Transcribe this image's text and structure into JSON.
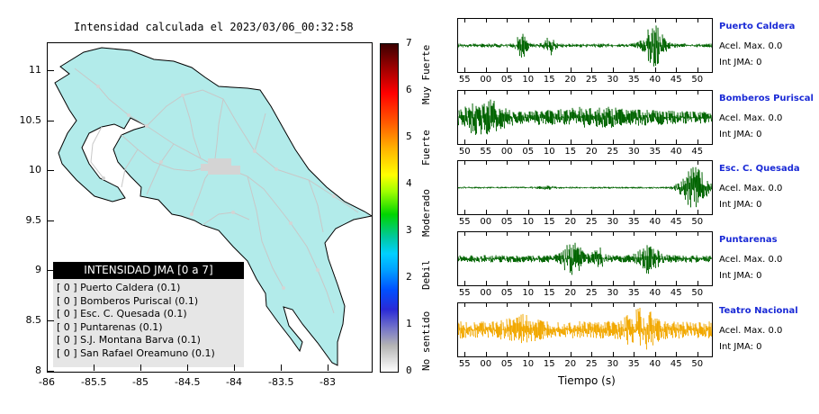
{
  "map": {
    "title": "Intensidad calculada el 2023/03/06_00:32:58",
    "lon_ticks": [
      "-86",
      "-85.5",
      "-85",
      "-84.5",
      "-84",
      "-83.5",
      "-83"
    ],
    "lat_ticks": [
      "11",
      "10.5",
      "10",
      "9.5",
      "9",
      "8.5",
      "8"
    ],
    "land_color": "#b2ebea",
    "road_color": "#c8c8c8"
  },
  "colorbar": {
    "ticks": [
      "7",
      "6",
      "5",
      "4",
      "3",
      "2",
      "1",
      "0"
    ],
    "labels": [
      "Muy Fuerte",
      "Fuerte",
      "Moderado",
      "Debil",
      "No sentido"
    ]
  },
  "legend": {
    "title": "INTENSIDAD JMA [0 a 7]",
    "items": [
      "[ 0 ]  Puerto Caldera (0.1)",
      "[ 0 ]  Bomberos Puriscal (0.1)",
      "[ 0 ]  Esc. C. Quesada (0.1)",
      "[ 0 ]  Puntarenas (0.1)",
      "[ 0 ]  S.J. Montana Barva (0.1)",
      "[ 0 ]  San Rafael Oreamuno (0.1)"
    ]
  },
  "stations": [
    {
      "name": "Puerto Caldera",
      "accel": "Acel. Max. 0.0",
      "int": "Int JMA: 0",
      "color": "#006400",
      "ticks": [
        "55",
        "00",
        "05",
        "10",
        "15",
        "20",
        "25",
        "30",
        "35",
        "40",
        "45",
        "50"
      ]
    },
    {
      "name": "Bomberos Puriscal",
      "accel": "Acel. Max. 0.0",
      "int": "Int JMA: 0",
      "color": "#006400",
      "ticks": [
        "50",
        "55",
        "00",
        "05",
        "10",
        "15",
        "20",
        "25",
        "30",
        "35",
        "40",
        "45"
      ]
    },
    {
      "name": "Esc. C. Quesada",
      "accel": "Acel. Max. 0.0",
      "int": "Int JMA: 0",
      "color": "#006400",
      "ticks": [
        "55",
        "00",
        "05",
        "10",
        "15",
        "20",
        "25",
        "30",
        "35",
        "40",
        "45",
        "50"
      ]
    },
    {
      "name": "Puntarenas",
      "accel": "Acel. Max. 0.0",
      "int": "Int JMA: 0",
      "color": "#006400",
      "ticks": [
        "55",
        "00",
        "05",
        "10",
        "15",
        "20",
        "25",
        "30",
        "35",
        "40",
        "45",
        "50"
      ]
    },
    {
      "name": "Teatro Nacional",
      "accel": "Acel. Max. 0.0",
      "int": "Int JMA: 0",
      "color": "#f2a800",
      "ticks": [
        "55",
        "00",
        "05",
        "10",
        "15",
        "20",
        "25",
        "30",
        "35",
        "40",
        "45",
        "50"
      ]
    }
  ],
  "xlabel": "Tiempo (s)"
}
